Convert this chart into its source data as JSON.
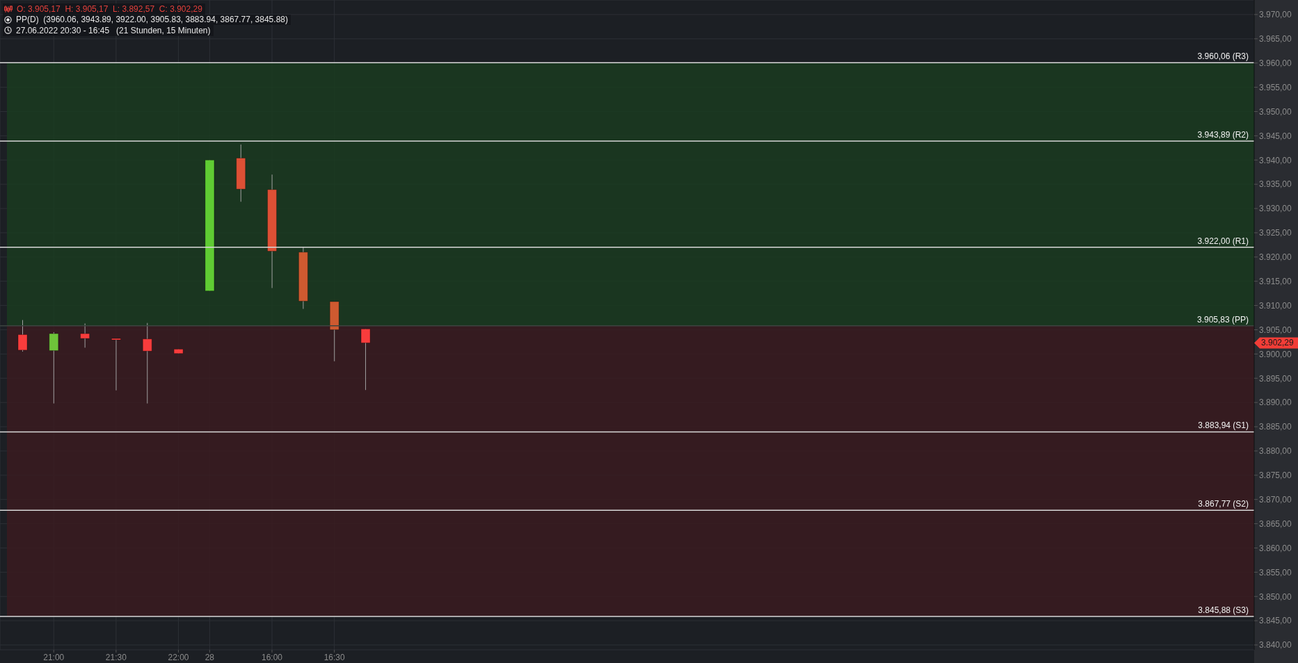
{
  "chart_data": {
    "type": "candlestick",
    "title": "O: 3.905,17  H: 3.905,17  L: 3.892,57  C: 3.902,29",
    "subtitle": "PP(D)  (3960.06, 3943.89, 3922.00, 3905.83, 3883.94, 3867.77, 3845.88)",
    "annotations": [
      "27.06.2022 20:30 - 16:45   (21 Stunden, 15 Minuten)",
      "3.902,29"
    ],
    "categories": [
      null,
      "21:00",
      null,
      "21:30",
      null,
      "22:00",
      "28",
      null,
      "16:00",
      null,
      "16:30",
      null,
      null,
      null,
      null,
      null,
      null,
      null,
      null,
      null,
      null,
      null,
      null,
      null,
      null,
      null,
      null,
      null,
      null,
      null,
      null,
      null,
      null,
      null,
      null,
      null,
      null,
      null,
      null,
      null
    ],
    "ohlc": [
      [
        3904.0,
        3907.0,
        3900.5,
        3900.8
      ],
      [
        3900.7,
        3904.5,
        3889.8,
        3904.2
      ],
      [
        3904.2,
        3906.3,
        3901.3,
        3903.2
      ],
      [
        3903.2,
        3903.2,
        3892.5,
        3903.0
      ],
      [
        3903.1,
        3906.4,
        3889.8,
        3900.6
      ],
      [
        3901.0,
        3901.0,
        3900.1,
        3900.1
      ],
      [
        3913.0,
        3940.0,
        3913.0,
        3940.0
      ],
      [
        3940.4,
        3943.2,
        3931.4,
        3934.0
      ],
      [
        3933.9,
        3937.0,
        3913.6,
        3921.2
      ],
      [
        3921.0,
        3922.0,
        3909.3,
        3910.9
      ],
      [
        3910.8,
        3910.8,
        3898.5,
        3905.0
      ],
      [
        3905.17,
        3905.17,
        3892.57,
        3902.29
      ],
      null,
      null,
      null,
      null,
      null,
      null,
      null,
      null,
      null,
      null,
      null,
      null,
      null,
      null,
      null,
      null,
      null,
      null,
      null,
      null,
      null,
      null,
      null,
      null,
      null,
      null,
      null,
      null
    ],
    "colors": [
      "#f83c3c",
      "#6ec43a",
      "#f83c3c",
      "#f83c3c",
      "#f83c3c",
      "#f83c3c",
      "#5fcc33",
      "#dd5035",
      "#dd5035",
      "#cf5a30",
      "#cf5a30",
      "#f83c3c",
      null,
      null,
      null,
      null,
      null,
      null,
      null,
      null,
      null,
      null,
      null,
      null,
      null,
      null,
      null,
      null,
      null,
      null,
      null,
      null,
      null,
      null,
      null,
      null,
      null,
      null,
      null,
      null
    ],
    "ylim": [
      3839,
      3973
    ],
    "yticks": [
      {
        "value": 3840,
        "label": "3.840,00"
      },
      {
        "value": 3845,
        "label": "3.845,00"
      },
      {
        "value": 3850,
        "label": "3.850,00"
      },
      {
        "value": 3855,
        "label": "3.855,00"
      },
      {
        "value": 3860,
        "label": "3.860,00"
      },
      {
        "value": 3865,
        "label": "3.865,00"
      },
      {
        "value": 3870,
        "label": "3.870,00"
      },
      {
        "value": 3875,
        "label": "3.875,00"
      },
      {
        "value": 3880,
        "label": "3.880,00"
      },
      {
        "value": 3885,
        "label": "3.885,00"
      },
      {
        "value": 3890,
        "label": "3.890,00"
      },
      {
        "value": 3895,
        "label": "3.895,00"
      },
      {
        "value": 3900,
        "label": "3.900,00"
      },
      {
        "value": 3905,
        "label": "3.905,00"
      },
      {
        "value": 3910,
        "label": "3.910,00"
      },
      {
        "value": 3915,
        "label": "3.915,00"
      },
      {
        "value": 3920,
        "label": "3.920,00"
      },
      {
        "value": 3925,
        "label": "3.925,00"
      },
      {
        "value": 3930,
        "label": "3.930,00"
      },
      {
        "value": 3935,
        "label": "3.935,00"
      },
      {
        "value": 3940,
        "label": "3.940,00"
      },
      {
        "value": 3945,
        "label": "3.945,00"
      },
      {
        "value": 3950,
        "label": "3.950,00"
      },
      {
        "value": 3955,
        "label": "3.955,00"
      },
      {
        "value": 3960,
        "label": "3.960,00"
      },
      {
        "value": 3965,
        "label": "3.965,00"
      },
      {
        "value": 3970,
        "label": "3.970,00"
      }
    ],
    "grid": true,
    "bands": [
      {
        "axis": "y",
        "from": 3905.83,
        "to": 3960.06,
        "color": "#1a3b20"
      },
      {
        "axis": "y",
        "from": 3845.88,
        "to": 3905.83,
        "color": "#3a1b20"
      }
    ],
    "ref_lines": [
      {
        "axis": "y",
        "value": 3960.06,
        "label": "3.960,06 (R3)",
        "color": "#d9d9d9"
      },
      {
        "axis": "y",
        "value": 3943.89,
        "label": "3.943,89 (R2)",
        "color": "#d9d9d9"
      },
      {
        "axis": "y",
        "value": 3922.0,
        "label": "3.922,00 (R1)",
        "color": "#d9d9d9"
      },
      {
        "axis": "y",
        "value": 3905.83,
        "label": "3.905,83 (PP)",
        "color": "#3c4440"
      },
      {
        "axis": "y",
        "value": 3883.94,
        "label": "3.883,94 (S1)",
        "color": "#d9d9d9"
      },
      {
        "axis": "y",
        "value": 3867.77,
        "label": "3.867,77 (S2)",
        "color": "#d9d9d9"
      },
      {
        "axis": "y",
        "value": 3845.88,
        "label": "3.845,88 (S3)",
        "color": "#d9d9d9"
      }
    ]
  }
}
